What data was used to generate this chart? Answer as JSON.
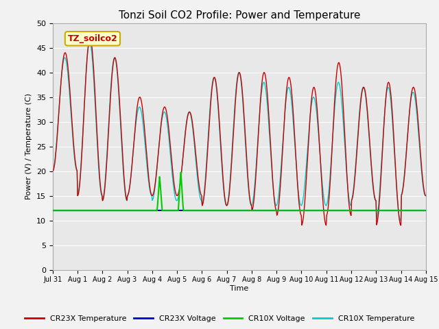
{
  "title": "Tonzi Soil CO2 Profile: Power and Temperature",
  "ylabel": "Power (V) / Temperature (C)",
  "xlabel": "Time",
  "annotation": "TZ_soilco2",
  "ylim": [
    0,
    50
  ],
  "xlim_days": [
    0,
    15
  ],
  "x_tick_labels": [
    "Jul 31",
    "Aug 1",
    "Aug 2",
    "Aug 3",
    "Aug 4",
    "Aug 5",
    "Aug 6",
    "Aug 7",
    "Aug 8",
    "Aug 9",
    "Aug 10",
    "Aug 11",
    "Aug 12",
    "Aug 13",
    "Aug 14",
    "Aug 15"
  ],
  "bg_color": "#e8e8e8",
  "grid_color": "#ffffff",
  "cr23x_temp_color": "#cc0000",
  "cr23x_volt_color": "#0000cc",
  "cr10x_volt_color": "#00cc00",
  "cr10x_temp_color": "#00cccc",
  "voltage_base": 12.0,
  "legend_labels": [
    "CR23X Temperature",
    "CR23X Voltage",
    "CR10X Voltage",
    "CR10X Temperature"
  ]
}
